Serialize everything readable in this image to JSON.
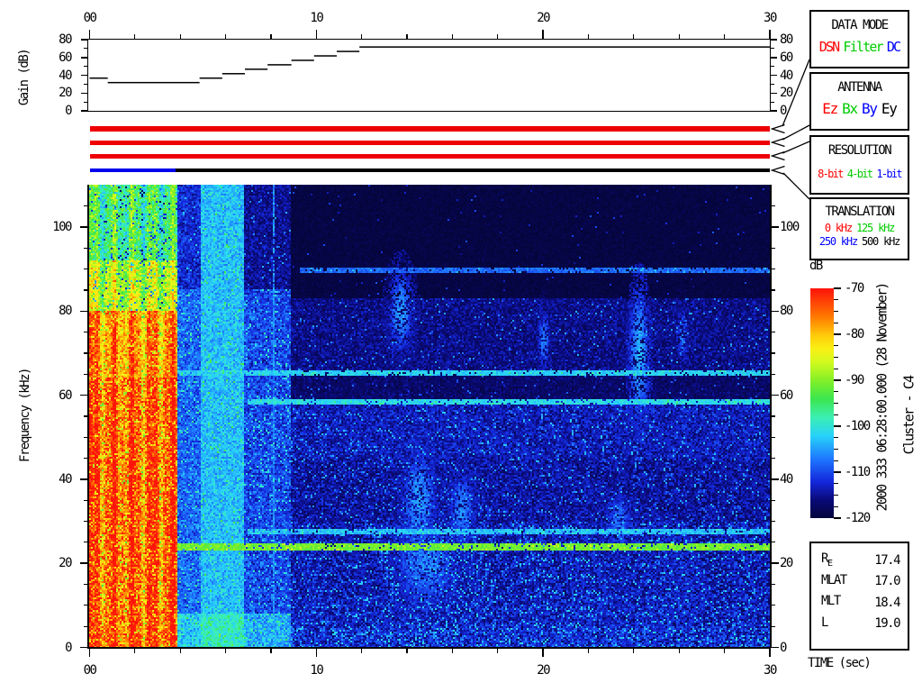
{
  "colors": {
    "red": "#ff0000",
    "green": "#00cc00",
    "blue": "#0000ff",
    "black": "#000000",
    "bar_red": "#ee0000",
    "bar_blue": "#0000ee",
    "bar_black": "#000000"
  },
  "axes": {
    "time": {
      "label": "TIME (sec)",
      "ticks": [
        {
          "v": 0,
          "label": "00"
        },
        {
          "v": 10,
          "label": "10"
        },
        {
          "v": 20,
          "label": "20"
        },
        {
          "v": 30,
          "label": "30"
        }
      ],
      "minor_step": 2,
      "range": [
        0,
        30
      ]
    },
    "gain": {
      "label": "Gain (dB)",
      "ticks": [
        {
          "v": 0,
          "label": "0"
        },
        {
          "v": 20,
          "label": "20"
        },
        {
          "v": 40,
          "label": "40"
        },
        {
          "v": 60,
          "label": "60"
        },
        {
          "v": 80,
          "label": "80"
        }
      ],
      "minor_step": 10,
      "range": [
        0,
        80
      ]
    },
    "freq": {
      "label": "Frequency (kHz)",
      "ticks": [
        {
          "v": 0,
          "label": "0"
        },
        {
          "v": 20,
          "label": "20"
        },
        {
          "v": 40,
          "label": "40"
        },
        {
          "v": 60,
          "label": "60"
        },
        {
          "v": 80,
          "label": "80"
        },
        {
          "v": 100,
          "label": "100"
        }
      ],
      "minor_step": 5,
      "range": [
        0,
        110
      ]
    },
    "colorbar": {
      "label": "dB",
      "ticks": [
        {
          "v": -70,
          "label": "-70"
        },
        {
          "v": -80,
          "label": "-80"
        },
        {
          "v": -90,
          "label": "-90"
        },
        {
          "v": -100,
          "label": "-100"
        },
        {
          "v": -110,
          "label": "-110"
        },
        {
          "v": -120,
          "label": "-120"
        }
      ],
      "minor_step": 2.5,
      "range": [
        -120,
        -70
      ]
    }
  },
  "panels": [
    {
      "title": "DATA MODE",
      "items": [
        {
          "label": "DSN",
          "color": "red"
        },
        {
          "label": "Filter",
          "color": "green"
        },
        {
          "label": "DC",
          "color": "blue"
        }
      ]
    },
    {
      "title": "ANTENNA",
      "items": [
        {
          "label": "Ez",
          "color": "red"
        },
        {
          "label": "Bx",
          "color": "green"
        },
        {
          "label": "By",
          "color": "blue"
        },
        {
          "label": "Ey",
          "color": "black"
        }
      ]
    },
    {
      "title": "RESOLUTION",
      "items": [
        {
          "label": "8-bit",
          "color": "red"
        },
        {
          "label": "4-bit",
          "color": "green"
        },
        {
          "label": "1-bit",
          "color": "blue"
        }
      ]
    },
    {
      "title": "TRANSLATION",
      "items": [
        {
          "label": "0 kHz",
          "color": "red"
        },
        {
          "label": "125 kHz",
          "color": "green"
        },
        {
          "label": "250 kHz",
          "color": "blue"
        },
        {
          "label": "500 kHz",
          "color": "black"
        }
      ]
    }
  ],
  "side_text": {
    "datetime": "2000 333 06:28:00.000 (28 November)",
    "spacecraft": "Cluster - C4"
  },
  "ephemeris": {
    "rows": [
      {
        "label": "R",
        "sub": "E",
        "value": "17.4"
      },
      {
        "label": "MLAT",
        "sub": "",
        "value": "17.0"
      },
      {
        "label": "MLT",
        "sub": "",
        "value": "18.4"
      },
      {
        "label": "L",
        "sub": "",
        "value": "19.0"
      }
    ]
  },
  "chart_data": {
    "type": "heatmap",
    "title": "Cluster C4 WBD wideband spectrogram, 2000-333 (28 November) 06:28:00.000, 30-second panel",
    "xlabel": "TIME (sec)",
    "ylabel": "Frequency (kHz)",
    "xlim": [
      0,
      30
    ],
    "ylim": [
      0,
      110
    ],
    "intensity_range_dB": [
      -120,
      -70
    ],
    "gain_plot": {
      "ylabel": "Gain (dB)",
      "ylim": [
        0,
        80
      ],
      "steps": [
        [
          0,
          37.5
        ],
        [
          0.8,
          32.5
        ],
        [
          4.85,
          37.5
        ],
        [
          5.85,
          42.5
        ],
        [
          6.85,
          47.5
        ],
        [
          7.85,
          52.5
        ],
        [
          8.9,
          57.5
        ],
        [
          9.9,
          62.5
        ],
        [
          10.9,
          67.5
        ],
        [
          11.9,
          72.5
        ]
      ],
      "end_time": 30
    },
    "status_bars": [
      {
        "name": "data-mode",
        "segments": [
          {
            "t0": 0,
            "t1": 30,
            "color": "bar_red"
          }
        ]
      },
      {
        "name": "antenna",
        "segments": [
          {
            "t0": 0,
            "t1": 30,
            "color": "bar_red"
          }
        ]
      },
      {
        "name": "resolution",
        "segments": [
          {
            "t0": 0,
            "t1": 30,
            "color": "bar_red"
          }
        ]
      },
      {
        "name": "translation",
        "segments": [
          {
            "t0": 0,
            "t1": 3.8,
            "color": "bar_blue"
          },
          {
            "t0": 3.8,
            "t1": 30,
            "color": "bar_black"
          }
        ]
      }
    ],
    "colormap": [
      [
        0.0,
        5,
        5,
        60
      ],
      [
        0.08,
        10,
        10,
        120
      ],
      [
        0.16,
        20,
        40,
        220
      ],
      [
        0.26,
        30,
        120,
        255
      ],
      [
        0.36,
        40,
        210,
        250
      ],
      [
        0.44,
        60,
        240,
        180
      ],
      [
        0.52,
        60,
        230,
        80
      ],
      [
        0.6,
        130,
        240,
        40
      ],
      [
        0.68,
        210,
        250,
        30
      ],
      [
        0.74,
        250,
        240,
        20
      ],
      [
        0.8,
        255,
        200,
        10
      ],
      [
        0.88,
        255,
        120,
        0
      ],
      [
        1.0,
        255,
        20,
        10
      ]
    ],
    "spectrogram": {
      "bands": [
        {
          "t0": 0,
          "t1": 3.85,
          "f0": 0,
          "f1": 64,
          "base": -74,
          "amp": 10,
          "spk": 0.06,
          "spkDb": -86,
          "stripe": 1
        },
        {
          "t0": 0,
          "t1": 3.85,
          "f0": 64,
          "f1": 80,
          "base": -77,
          "amp": 8,
          "spk": 0.05,
          "spkDb": -88,
          "stripe": 1
        },
        {
          "t0": 0,
          "t1": 3.85,
          "f0": 80,
          "f1": 92,
          "base": -87,
          "amp": 9,
          "spk": 0.06,
          "spkDb": -108,
          "stripe": 1
        },
        {
          "t0": 0,
          "t1": 3.85,
          "f0": 92,
          "f1": 110,
          "base": -95,
          "amp": 8,
          "spk": 0.06,
          "spkDb": -112,
          "stripe": 1
        },
        {
          "t0": 3.85,
          "t1": 4.9,
          "f0": 0,
          "f1": 8,
          "base": -102,
          "amp": 6,
          "spk": 0.05,
          "spkDb": -96
        },
        {
          "t0": 3.85,
          "t1": 4.9,
          "f0": 8,
          "f1": 85,
          "base": -108,
          "amp": 6,
          "spk": 0.05,
          "spkDb": -99
        },
        {
          "t0": 3.85,
          "t1": 4.9,
          "f0": 85,
          "f1": 110,
          "base": -112,
          "amp": 5,
          "spk": 0.03,
          "spkDb": -103
        },
        {
          "t0": 4.9,
          "t1": 6.85,
          "f0": 0,
          "f1": 8,
          "base": -99,
          "amp": 5,
          "spk": 0.06,
          "spkDb": -93
        },
        {
          "t0": 4.9,
          "t1": 6.85,
          "f0": 8,
          "f1": 110,
          "base": -103,
          "amp": 5,
          "spk": 0.04,
          "spkDb": -96
        },
        {
          "t0": 6.85,
          "t1": 8.9,
          "f0": 0,
          "f1": 8,
          "base": -104,
          "amp": 6,
          "spk": 0.06,
          "spkDb": -97
        },
        {
          "t0": 6.85,
          "t1": 8.9,
          "f0": 8,
          "f1": 85,
          "base": -110,
          "amp": 6,
          "spk": 0.06,
          "spkDb": -101
        },
        {
          "t0": 6.85,
          "t1": 8.9,
          "f0": 85,
          "f1": 110,
          "base": -115,
          "amp": 4,
          "spk": 0.02,
          "spkDb": -106
        },
        {
          "t0": 8.9,
          "t1": 30,
          "f0": 83,
          "f1": 110,
          "base": -119.5,
          "amp": 1.5,
          "spk": 0.008,
          "spkDb": -112
        },
        {
          "t0": 8.9,
          "t1": 30,
          "f0": 66,
          "f1": 83,
          "base": -115.5,
          "amp": 4,
          "spk": 0.03,
          "spkDb": -107
        },
        {
          "t0": 8.9,
          "t1": 30,
          "f0": 59,
          "f1": 66,
          "base": -117,
          "amp": 3,
          "spk": 0.02,
          "spkDb": -109
        },
        {
          "t0": 8.9,
          "t1": 30,
          "f0": 45,
          "f1": 59,
          "base": -113.5,
          "amp": 5,
          "spk": 0.05,
          "spkDb": -105
        },
        {
          "t0": 8.9,
          "t1": 30,
          "f0": 30,
          "f1": 45,
          "base": -114.5,
          "amp": 5,
          "spk": 0.05,
          "spkDb": -106
        },
        {
          "t0": 8.9,
          "t1": 30,
          "f0": 12,
          "f1": 30,
          "base": -113.5,
          "amp": 6,
          "spk": 0.07,
          "spkDb": -104
        },
        {
          "t0": 8.9,
          "t1": 30,
          "f0": 5,
          "f1": 12,
          "base": -113,
          "amp": 6,
          "spk": 0.08,
          "spkDb": -104
        },
        {
          "t0": 8.9,
          "t1": 30,
          "f0": 0,
          "f1": 5,
          "base": -112,
          "amp": 7,
          "spk": 0.1,
          "spkDb": -103
        }
      ],
      "hlines": [
        {
          "f": 90,
          "t0": 9.3,
          "t1": 30,
          "db": -108,
          "th": 2
        },
        {
          "f": 65.5,
          "t0": 3.9,
          "t1": 30,
          "db": -102,
          "th": 2
        },
        {
          "f": 58.5,
          "t0": 7,
          "t1": 30,
          "db": -101,
          "th": 2
        },
        {
          "f": 27.5,
          "t0": 7,
          "t1": 30,
          "db": -103,
          "th": 2
        },
        {
          "f": 24,
          "t0": 3.9,
          "t1": 30,
          "db": -91,
          "th": 3
        }
      ],
      "vlines": [
        {
          "t": 8.1,
          "f0": 0,
          "f1": 110,
          "db": -106,
          "th": 2
        },
        {
          "t": 0.12,
          "f0": 0,
          "f1": 110,
          "db": -96,
          "th": 2
        }
      ],
      "blobs": [
        {
          "t": 13.7,
          "f": 80,
          "rt": 0.35,
          "rf": 6,
          "db": -105
        },
        {
          "t": 14.5,
          "f": 35,
          "rt": 0.5,
          "rf": 8,
          "db": -105
        },
        {
          "t": 14.8,
          "f": 20,
          "rt": 1.0,
          "rf": 7,
          "db": -106
        },
        {
          "t": 16.4,
          "f": 33,
          "rt": 0.4,
          "rf": 6,
          "db": -106
        },
        {
          "t": 20.0,
          "f": 73,
          "rt": 0.2,
          "rf": 5,
          "db": -107
        },
        {
          "t": 23.3,
          "f": 30,
          "rt": 0.4,
          "rf": 5,
          "db": -107
        },
        {
          "t": 24.2,
          "f": 70,
          "rt": 0.25,
          "rf": 9,
          "db": -103
        },
        {
          "t": 26.1,
          "f": 74,
          "rt": 0.2,
          "rf": 5,
          "db": -108
        }
      ]
    }
  }
}
